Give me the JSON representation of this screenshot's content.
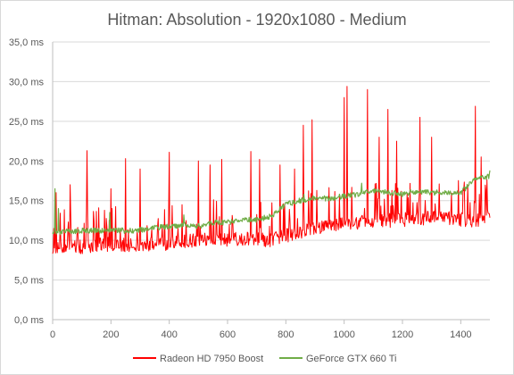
{
  "chart_data": {
    "type": "line",
    "title": "Hitman: Absolution - 1920x1080 - Medium",
    "xlabel": "",
    "ylabel": "",
    "xlim": [
      0,
      1500
    ],
    "ylim": [
      0,
      35
    ],
    "x_ticks": [
      0,
      200,
      400,
      600,
      800,
      1000,
      1200,
      1400
    ],
    "x_tick_labels": [
      "0",
      "200",
      "400",
      "600",
      "800",
      "1000",
      "1200",
      "1400"
    ],
    "y_ticks": [
      0,
      5,
      10,
      15,
      20,
      25,
      30,
      35
    ],
    "y_tick_labels": [
      "0,0 ms",
      "5,0 ms",
      "10,0 ms",
      "15,0 ms",
      "20,0 ms",
      "25,0 ms",
      "30,0 ms",
      "35,0 ms"
    ],
    "grid": "horizontal",
    "legend_position": "bottom",
    "series": [
      {
        "name": "Radeon HD 7950 Boost",
        "color": "#ff0000",
        "x": [
          0,
          50,
          100,
          150,
          200,
          250,
          300,
          350,
          400,
          450,
          500,
          550,
          600,
          650,
          700,
          750,
          800,
          850,
          900,
          950,
          1000,
          1050,
          1100,
          1150,
          1200,
          1250,
          1300,
          1350,
          1400,
          1450,
          1500
        ],
        "y": [
          9.0,
          9.3,
          9.2,
          9.4,
          9.5,
          9.4,
          9.6,
          9.5,
          9.6,
          9.8,
          10.0,
          10.2,
          10.0,
          10.2,
          10.1,
          10.0,
          10.6,
          11.0,
          11.6,
          12.0,
          12.2,
          12.3,
          12.4,
          12.5,
          12.6,
          12.7,
          12.8,
          12.8,
          12.6,
          12.5,
          13.0
        ],
        "spikes": [
          {
            "x": 5,
            "y": 18.8
          },
          {
            "x": 12,
            "y": 16.0
          },
          {
            "x": 35,
            "y": 17.5
          },
          {
            "x": 60,
            "y": 17.0
          },
          {
            "x": 85,
            "y": 16.6
          },
          {
            "x": 118,
            "y": 21.3
          },
          {
            "x": 165,
            "y": 18.6
          },
          {
            "x": 200,
            "y": 16.5
          },
          {
            "x": 250,
            "y": 20.3
          },
          {
            "x": 300,
            "y": 19.0
          },
          {
            "x": 355,
            "y": 20.2
          },
          {
            "x": 400,
            "y": 21.1
          },
          {
            "x": 455,
            "y": 18.6
          },
          {
            "x": 500,
            "y": 20.0
          },
          {
            "x": 540,
            "y": 19.5
          },
          {
            "x": 580,
            "y": 20.2
          },
          {
            "x": 645,
            "y": 19.3
          },
          {
            "x": 680,
            "y": 21.2
          },
          {
            "x": 710,
            "y": 20.2
          },
          {
            "x": 745,
            "y": 21.3
          },
          {
            "x": 780,
            "y": 19.5
          },
          {
            "x": 830,
            "y": 19.0
          },
          {
            "x": 860,
            "y": 24.5
          },
          {
            "x": 890,
            "y": 25.2
          },
          {
            "x": 915,
            "y": 26.0
          },
          {
            "x": 945,
            "y": 24.5
          },
          {
            "x": 975,
            "y": 23.0
          },
          {
            "x": 1000,
            "y": 28.0
          },
          {
            "x": 1010,
            "y": 29.4
          },
          {
            "x": 1045,
            "y": 26.2
          },
          {
            "x": 1080,
            "y": 29.0
          },
          {
            "x": 1120,
            "y": 23.0
          },
          {
            "x": 1150,
            "y": 26.5
          },
          {
            "x": 1180,
            "y": 22.5
          },
          {
            "x": 1205,
            "y": 28.2
          },
          {
            "x": 1245,
            "y": 30.2
          },
          {
            "x": 1260,
            "y": 25.5
          },
          {
            "x": 1300,
            "y": 23.0
          },
          {
            "x": 1335,
            "y": 21.0
          },
          {
            "x": 1395,
            "y": 17.5
          },
          {
            "x": 1450,
            "y": 26.9
          },
          {
            "x": 1470,
            "y": 20.5
          }
        ]
      },
      {
        "name": "GeForce GTX 660 Ti",
        "color": "#70ad47",
        "x": [
          0,
          50,
          100,
          150,
          200,
          250,
          300,
          350,
          400,
          450,
          500,
          550,
          600,
          650,
          700,
          750,
          800,
          850,
          900,
          950,
          1000,
          1050,
          1100,
          1150,
          1200,
          1250,
          1300,
          1350,
          1400,
          1450,
          1500
        ],
        "y": [
          11.0,
          11.1,
          11.2,
          11.2,
          11.3,
          11.2,
          11.3,
          11.6,
          11.7,
          11.9,
          11.8,
          12.2,
          12.3,
          12.5,
          12.6,
          13.0,
          14.5,
          15.0,
          15.3,
          15.3,
          15.6,
          15.8,
          16.3,
          16.0,
          15.8,
          16.2,
          16.0,
          16.1,
          16.0,
          17.8,
          18.0
        ],
        "spikes": [
          {
            "x": 8,
            "y": 16.5
          },
          {
            "x": 20,
            "y": 14.0
          },
          {
            "x": 196,
            "y": 13.5
          },
          {
            "x": 450,
            "y": 13.2
          },
          {
            "x": 862,
            "y": 15.8
          },
          {
            "x": 1060,
            "y": 17.2
          },
          {
            "x": 1500,
            "y": 18.8
          }
        ]
      }
    ]
  }
}
